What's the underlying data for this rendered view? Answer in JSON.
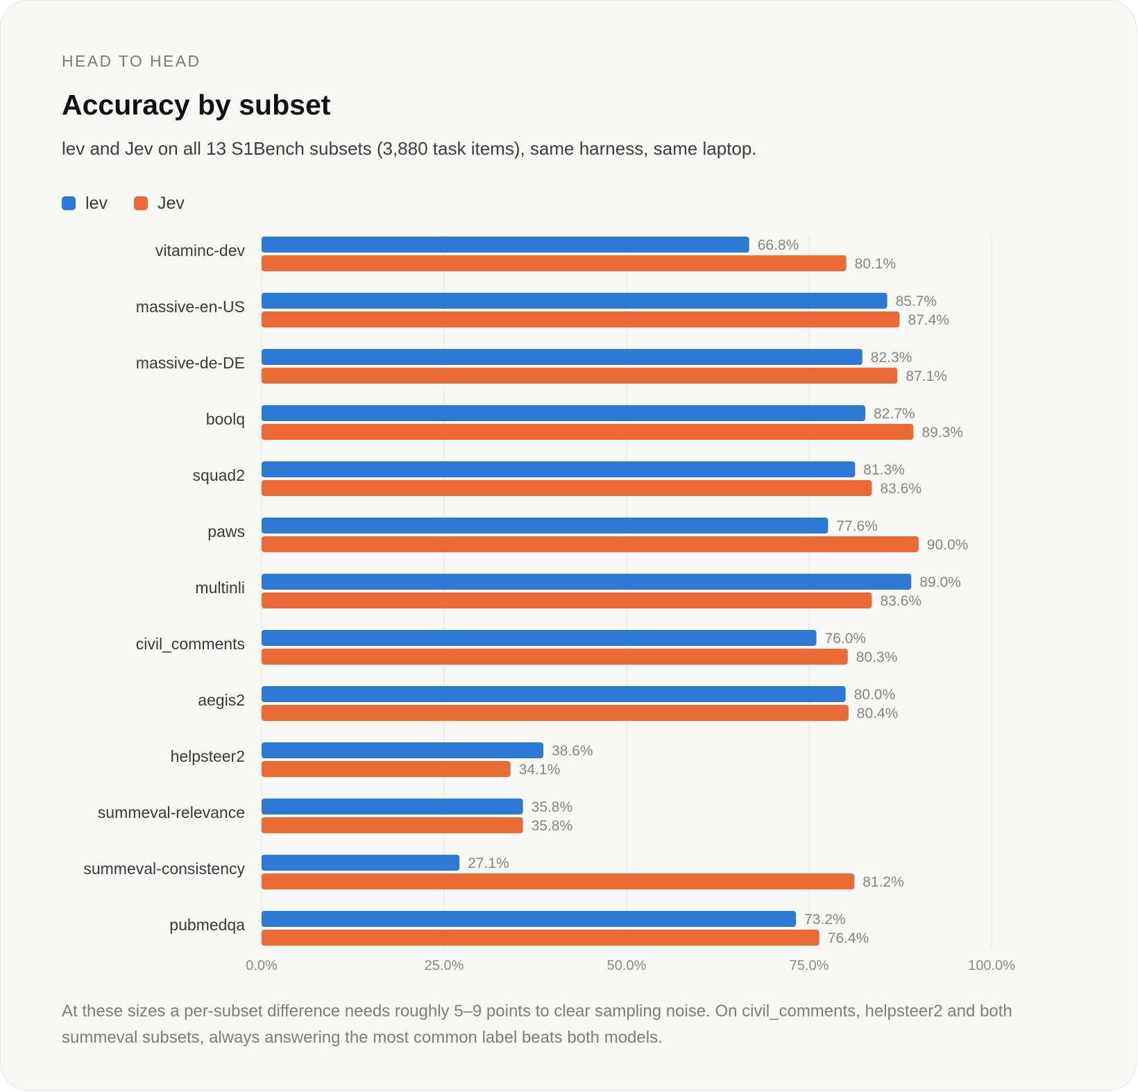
{
  "header": {
    "eyebrow": "HEAD TO HEAD",
    "title": "Accuracy by subset",
    "subtitle": "lev and Jev on all 13 S1Bench subsets (3,880 task items), same harness, same laptop."
  },
  "footnote": "At these sizes a per-subset difference needs roughly 5–9 points to clear sampling noise. On civil_comments, helpsteer2 and both summeval subsets, always answering the most common label beats both models.",
  "chart_data": {
    "type": "bar",
    "orientation": "horizontal",
    "title": "Accuracy by subset",
    "categories": [
      "vitaminc-dev",
      "massive-en-US",
      "massive-de-DE",
      "boolq",
      "squad2",
      "paws",
      "multinli",
      "civil_comments",
      "aegis2",
      "helpsteer2",
      "summeval-relevance",
      "summeval-consistency",
      "pubmedqa"
    ],
    "series": [
      {
        "name": "lev",
        "color": "#2d7ad6",
        "values": [
          66.8,
          85.7,
          82.3,
          82.7,
          81.3,
          77.6,
          89.0,
          76.0,
          80.0,
          38.6,
          35.8,
          27.1,
          73.2
        ]
      },
      {
        "name": "Jev",
        "color": "#eb6a36",
        "values": [
          80.1,
          87.4,
          87.1,
          89.3,
          83.6,
          90.0,
          83.6,
          80.3,
          80.4,
          34.1,
          35.8,
          81.2,
          76.4
        ]
      }
    ],
    "xlim": [
      0,
      100
    ],
    "xticks": [
      0,
      25,
      50,
      75,
      100
    ],
    "xtick_labels": [
      "0.0%",
      "25.0%",
      "50.0%",
      "75.0%",
      "100.0%"
    ],
    "value_labels": [
      [
        "66.8%",
        "85.7%",
        "82.3%",
        "82.7%",
        "81.3%",
        "77.6%",
        "89.0%",
        "76.0%",
        "80.0%",
        "38.6%",
        "35.8%",
        "27.1%",
        "73.2%"
      ],
      [
        "80.1%",
        "87.4%",
        "87.1%",
        "89.3%",
        "83.6%",
        "90.0%",
        "83.6%",
        "80.3%",
        "80.4%",
        "34.1%",
        "35.8%",
        "81.2%",
        "76.4%"
      ]
    ],
    "grid": true,
    "legend_position": "top-left"
  }
}
